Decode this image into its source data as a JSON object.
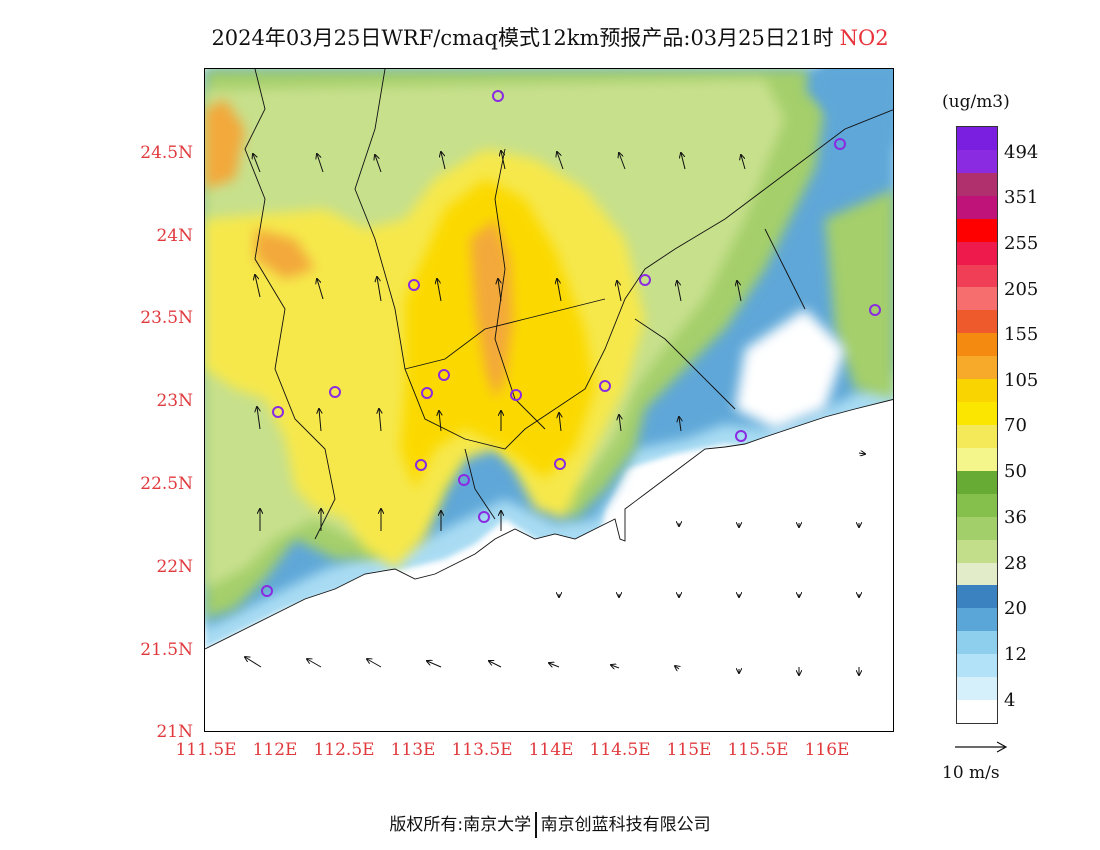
{
  "title": {
    "text": "2024年03月25日WRF/cmaq模式12km预报产品:03月25日21时",
    "pollutant": "NO2"
  },
  "map": {
    "lat_labels": [
      "24.5N",
      "24N",
      "23.5N",
      "23N",
      "22.5N",
      "22N",
      "21.5N",
      "21N"
    ],
    "lon_labels": [
      "111.5E",
      "112E",
      "112.5E",
      "113E",
      "113.5E",
      "114E",
      "114.5E",
      "115E",
      "115.5E",
      "116E"
    ],
    "lat_range": [
      21,
      25
    ],
    "lon_range": [
      111.5,
      116.5
    ],
    "station_marker_color": "#8a2be2"
  },
  "colorbar": {
    "unit": "(ug/m3)",
    "colors": [
      "#ffffff",
      "#d6f0fb",
      "#b2e2f7",
      "#8fcfee",
      "#5aa6d8",
      "#3b82c0",
      "#e2ecc8",
      "#c3de8a",
      "#a3cf6a",
      "#86c04c",
      "#67aa34",
      "#f4f58a",
      "#f4e958",
      "#fbe600",
      "#fad400",
      "#f7a92a",
      "#f58a10",
      "#ee5a2c",
      "#f76e6e",
      "#f03e56",
      "#ef1a4c",
      "#ff0000",
      "#c0137a",
      "#b0306e",
      "#8a2be2",
      "#7a1fe0"
    ],
    "labels": [
      "494",
      "351",
      "255",
      "205",
      "155",
      "105",
      "70",
      "50",
      "36",
      "28",
      "20",
      "12",
      "4"
    ]
  },
  "wind_scale": {
    "label": "10 m/s"
  },
  "footer": {
    "left": "版权所有:南京大学",
    "right": "南京创蓝科技有限公司"
  }
}
